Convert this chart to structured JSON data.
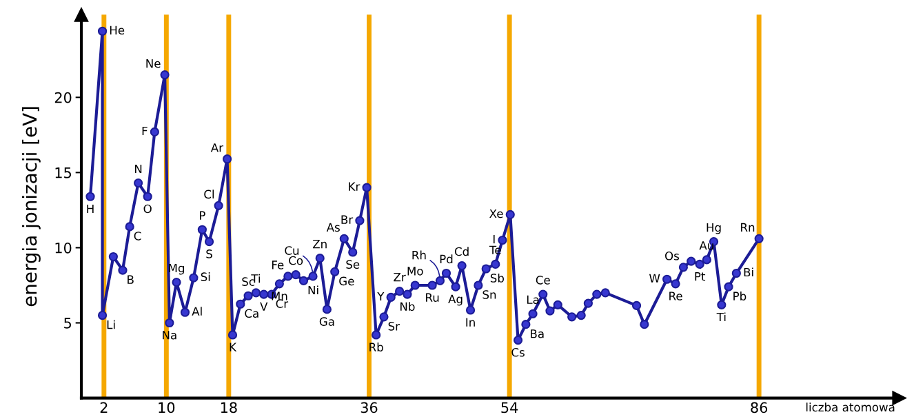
{
  "chart_data": {
    "type": "line",
    "xlabel": "liczba atomowa",
    "ylabel": "energia jonizacji [eV]",
    "xlim": [
      -0.9,
      104
    ],
    "ylim": [
      0,
      25.5
    ],
    "xticks": [
      2,
      10,
      18,
      36,
      54,
      86
    ],
    "yticks": [
      5,
      10,
      15,
      20
    ],
    "grid": false,
    "marker": "circle",
    "line_style": "solid",
    "series": [
      {
        "color": "#1c1c96",
        "x": [
          0.25,
          1.8,
          1.8,
          3.2,
          4.4,
          5.3,
          6.4,
          7.6,
          8.5,
          9.8,
          10.4,
          11.3,
          12.4,
          13.5,
          14.6,
          15.5,
          16.7,
          17.8,
          18.5,
          19.5,
          20.5,
          21.5,
          22.5,
          23.5,
          24.5,
          25.6,
          26.6,
          27.6,
          28.8,
          29.7,
          30.6,
          31.6,
          32.8,
          33.9,
          34.8,
          35.7,
          36.9,
          37.9,
          38.8,
          39.9,
          40.9,
          41.9,
          44.1,
          45.1,
          45.9,
          47.1,
          47.9,
          49.0,
          50.0,
          51.0,
          52.2,
          53.1,
          54.1,
          55.1,
          56.1,
          57.0,
          58.3,
          59.2,
          60.2,
          62.0,
          63.2,
          64.1,
          65.2,
          66.3,
          70.3,
          71.3,
          74.2,
          75.3,
          76.3,
          77.3,
          78.4,
          79.3,
          80.2,
          81.2,
          82.1,
          83.1,
          86.0
        ],
        "values": [
          13.4,
          24.4,
          5.5,
          9.4,
          8.5,
          11.4,
          14.3,
          13.4,
          17.7,
          21.5,
          5.0,
          7.7,
          5.7,
          8.0,
          11.2,
          10.4,
          12.8,
          15.9,
          4.2,
          6.25,
          6.8,
          7.0,
          6.9,
          6.9,
          7.6,
          8.1,
          8.2,
          7.8,
          8.1,
          9.3,
          5.9,
          8.4,
          10.6,
          9.7,
          11.8,
          14.0,
          4.2,
          5.4,
          6.7,
          7.1,
          6.9,
          7.5,
          7.5,
          7.8,
          8.3,
          7.4,
          8.8,
          5.85,
          7.5,
          8.6,
          8.9,
          10.5,
          12.2,
          3.85,
          4.9,
          5.6,
          6.9,
          5.8,
          6.2,
          5.4,
          5.5,
          6.3,
          6.9,
          7.0,
          6.15,
          4.9,
          7.9,
          7.6,
          8.7,
          9.1,
          8.9,
          9.2,
          10.4,
          6.2,
          7.4,
          8.3,
          10.6
        ]
      }
    ],
    "ref_lines": [
      {
        "axis": "x",
        "value": 2,
        "color": "#f5a800"
      },
      {
        "axis": "x",
        "value": 10,
        "color": "#f5a800"
      },
      {
        "axis": "x",
        "value": 18,
        "color": "#f5a800"
      },
      {
        "axis": "x",
        "value": 36,
        "color": "#f5a800"
      },
      {
        "axis": "x",
        "value": 54,
        "color": "#f5a800"
      },
      {
        "axis": "x",
        "value": 86,
        "color": "#f5a800"
      }
    ],
    "annotations": [
      {
        "text": "H",
        "x": 0.25,
        "y": 13.4
      },
      {
        "text": "He",
        "x": 1.8,
        "y": 24.4
      },
      {
        "text": "Li",
        "x": 1.8,
        "y": 5.5
      },
      {
        "text": "B",
        "x": 4.4,
        "y": 8.5
      },
      {
        "text": "C",
        "x": 5.3,
        "y": 11.4
      },
      {
        "text": "N",
        "x": 6.4,
        "y": 14.3
      },
      {
        "text": "O",
        "x": 7.6,
        "y": 13.4
      },
      {
        "text": "F",
        "x": 8.5,
        "y": 17.7
      },
      {
        "text": "Ne",
        "x": 9.8,
        "y": 21.5
      },
      {
        "text": "Na",
        "x": 10.4,
        "y": 5.0
      },
      {
        "text": "Mg",
        "x": 11.3,
        "y": 7.7
      },
      {
        "text": "Al",
        "x": 12.4,
        "y": 5.7
      },
      {
        "text": "Si",
        "x": 13.5,
        "y": 8.0
      },
      {
        "text": "P",
        "x": 14.6,
        "y": 11.2
      },
      {
        "text": "S",
        "x": 15.5,
        "y": 10.4
      },
      {
        "text": "Cl",
        "x": 16.7,
        "y": 12.8
      },
      {
        "text": "Ar",
        "x": 17.8,
        "y": 15.9
      },
      {
        "text": "K",
        "x": 18.5,
        "y": 4.2
      },
      {
        "text": "Ca",
        "x": 19.5,
        "y": 6.25
      },
      {
        "text": "Sc",
        "x": 20.5,
        "y": 6.8
      },
      {
        "text": "Ti",
        "x": 21.5,
        "y": 7.0
      },
      {
        "text": "V",
        "x": 22.5,
        "y": 6.9
      },
      {
        "text": "Cr",
        "x": 23.5,
        "y": 6.9
      },
      {
        "text": "Mn",
        "x": 24.5,
        "y": 7.6
      },
      {
        "text": "Fe",
        "x": 25.6,
        "y": 8.1
      },
      {
        "text": "Co",
        "x": 26.6,
        "y": 8.2
      },
      {
        "text": "Ni",
        "x": 27.6,
        "y": 7.8
      },
      {
        "text": "Cu",
        "x": 28.8,
        "y": 8.1
      },
      {
        "text": "Zn",
        "x": 29.7,
        "y": 9.3
      },
      {
        "text": "Ga",
        "x": 30.6,
        "y": 5.9
      },
      {
        "text": "Ge",
        "x": 31.6,
        "y": 8.4
      },
      {
        "text": "As",
        "x": 32.8,
        "y": 10.6
      },
      {
        "text": "Se",
        "x": 33.9,
        "y": 9.7
      },
      {
        "text": "Br",
        "x": 34.8,
        "y": 11.8
      },
      {
        "text": "Kr",
        "x": 35.7,
        "y": 14.0
      },
      {
        "text": "Rb",
        "x": 36.9,
        "y": 4.2
      },
      {
        "text": "Sr",
        "x": 37.9,
        "y": 5.4
      },
      {
        "text": "Y",
        "x": 38.8,
        "y": 6.7
      },
      {
        "text": "Zr",
        "x": 39.9,
        "y": 7.1
      },
      {
        "text": "Nb",
        "x": 40.9,
        "y": 6.9
      },
      {
        "text": "Mo",
        "x": 41.9,
        "y": 7.5
      },
      {
        "text": "Ru",
        "x": 44.1,
        "y": 7.5
      },
      {
        "text": "Rh",
        "x": 45.1,
        "y": 7.8
      },
      {
        "text": "Pd",
        "x": 45.9,
        "y": 8.3
      },
      {
        "text": "Ag",
        "x": 47.1,
        "y": 7.4
      },
      {
        "text": "Cd",
        "x": 47.9,
        "y": 8.8
      },
      {
        "text": "In",
        "x": 49.0,
        "y": 5.85
      },
      {
        "text": "Sn",
        "x": 50.0,
        "y": 7.5
      },
      {
        "text": "Sb",
        "x": 51.0,
        "y": 8.6
      },
      {
        "text": "Te",
        "x": 52.2,
        "y": 8.9
      },
      {
        "text": "I",
        "x": 53.1,
        "y": 10.5
      },
      {
        "text": "Xe",
        "x": 54.1,
        "y": 12.2
      },
      {
        "text": "Cs",
        "x": 55.1,
        "y": 3.85
      },
      {
        "text": "Ba",
        "x": 56.1,
        "y": 4.9
      },
      {
        "text": "La",
        "x": 57.0,
        "y": 5.6
      },
      {
        "text": "Ce",
        "x": 58.3,
        "y": 6.9
      },
      {
        "text": "W",
        "x": 74.2,
        "y": 7.9
      },
      {
        "text": "Re",
        "x": 75.3,
        "y": 7.6
      },
      {
        "text": "Os",
        "x": 76.3,
        "y": 8.7
      },
      {
        "text": "Pt",
        "x": 78.4,
        "y": 8.9
      },
      {
        "text": "Au",
        "x": 79.3,
        "y": 9.2
      },
      {
        "text": "Hg",
        "x": 80.2,
        "y": 10.4
      },
      {
        "text": "Ti",
        "x": 81.2,
        "y": 6.2
      },
      {
        "text": "Pb",
        "x": 82.1,
        "y": 7.4
      },
      {
        "text": "Bi",
        "x": 83.1,
        "y": 8.3
      },
      {
        "text": "Rn",
        "x": 86.0,
        "y": 10.6
      }
    ]
  }
}
